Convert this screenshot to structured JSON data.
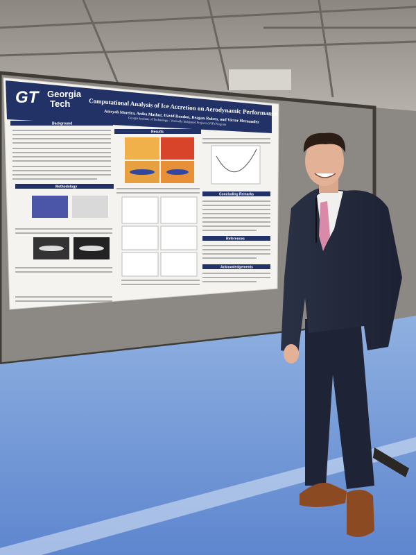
{
  "poster": {
    "logo_mark": "GT",
    "logo_text": [
      "Georgia",
      "Tech"
    ],
    "title": "Computational Analysis of Ice Accretion on Aerodynamic Performance",
    "authors": "Anicyah Moreira, Anika Mathur, David Rondon, Reagan Ruben, and Victor Hernandez",
    "affiliation": "Georgia Institute of Technology - Vertically Integrated Projects (VIP) Program",
    "sections": [
      "Background",
      "Methodology",
      "Results",
      "Concluding Remarks",
      "References",
      "Acknowledgements"
    ]
  }
}
